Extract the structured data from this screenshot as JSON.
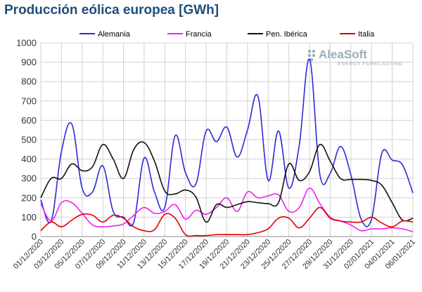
{
  "chart_data": {
    "type": "line",
    "title": "Producción eólica europea [GWh]",
    "ylim": [
      0,
      1000
    ],
    "yticks": [
      0,
      100,
      200,
      300,
      400,
      500,
      600,
      700,
      800,
      900,
      1000
    ],
    "grid": true,
    "legend_position": "top",
    "x": [
      "01/12/2020",
      "02/12/2020",
      "03/12/2020",
      "04/12/2020",
      "05/12/2020",
      "06/12/2020",
      "07/12/2020",
      "08/12/2020",
      "09/12/2020",
      "10/12/2020",
      "11/12/2020",
      "12/12/2020",
      "13/12/2020",
      "14/12/2020",
      "15/12/2020",
      "16/12/2020",
      "17/12/2020",
      "18/12/2020",
      "19/12/2020",
      "20/12/2020",
      "21/12/2020",
      "22/12/2020",
      "23/12/2020",
      "24/12/2020",
      "25/12/2020",
      "26/12/2020",
      "27/12/2020",
      "28/12/2020",
      "29/12/2020",
      "30/12/2020",
      "31/12/2020",
      "01/01/2021",
      "02/01/2021",
      "03/01/2021",
      "04/01/2021",
      "05/01/2021",
      "06/01/2021"
    ],
    "xtick_labels": [
      "01/12/2020",
      "03/12/2020",
      "05/12/2020",
      "07/12/2020",
      "09/12/2020",
      "11/12/2020",
      "13/12/2020",
      "15/12/2020",
      "17/12/2020",
      "19/12/2020",
      "21/12/2020",
      "23/12/2020",
      "25/12/2020",
      "27/12/2020",
      "29/12/2020",
      "31/12/2020",
      "02/01/2021",
      "04/01/2021",
      "06/01/2021"
    ],
    "series": [
      {
        "name": "Alemania",
        "color": "#2b2bd6",
        "values": [
          190,
          80,
          440,
          580,
          250,
          230,
          365,
          130,
          100,
          75,
          405,
          230,
          150,
          520,
          330,
          270,
          545,
          490,
          565,
          410,
          550,
          725,
          290,
          545,
          250,
          470,
          915,
          320,
          325,
          465,
          320,
          90,
          90,
          430,
          395,
          370,
          225
        ]
      },
      {
        "name": "Francia",
        "color": "#ee22ee",
        "values": [
          170,
          80,
          175,
          175,
          120,
          60,
          50,
          55,
          65,
          110,
          150,
          120,
          130,
          165,
          90,
          135,
          115,
          150,
          200,
          130,
          230,
          200,
          210,
          215,
          130,
          150,
          250,
          170,
          100,
          80,
          60,
          30,
          40,
          40,
          45,
          40,
          25
        ]
      },
      {
        "name": "Pen. Ibérica",
        "color": "#111111",
        "values": [
          200,
          300,
          300,
          375,
          340,
          360,
          475,
          400,
          300,
          450,
          485,
          390,
          235,
          220,
          240,
          205,
          75,
          165,
          150,
          165,
          180,
          175,
          170,
          175,
          375,
          290,
          335,
          475,
          390,
          300,
          295,
          295,
          290,
          265,
          175,
          85,
          95
        ]
      },
      {
        "name": "Italia",
        "color": "#e00000",
        "values": [
          30,
          75,
          50,
          85,
          115,
          110,
          75,
          110,
          95,
          50,
          30,
          35,
          115,
          95,
          10,
          5,
          5,
          10,
          10,
          10,
          10,
          20,
          40,
          95,
          95,
          45,
          95,
          150,
          95,
          80,
          75,
          75,
          100,
          70,
          50,
          80,
          75
        ]
      }
    ]
  },
  "logo": {
    "name": "AleaSoft",
    "tagline": "ENERGY FORECASTING",
    "colors": {
      "mark": "#9aaebd"
    }
  }
}
